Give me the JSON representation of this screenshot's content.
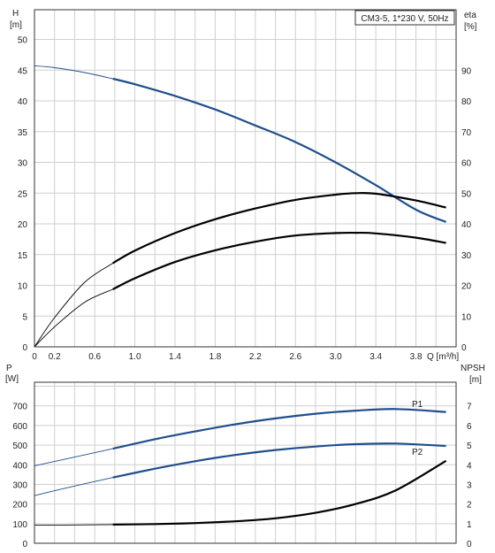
{
  "chart_data": [
    {
      "type": "line",
      "title": "CM3-5, 1*230 V, 50Hz",
      "xlabel": "Q [m³/h]",
      "ylabel_left": "H",
      "ylabel_left_unit": "[m]",
      "ylabel_right": "eta",
      "ylabel_right_unit": "[%]",
      "xlim": [
        0,
        4.2
      ],
      "ylim_left": [
        0,
        50
      ],
      "ylim_right": [
        0,
        100
      ],
      "x_ticks": [
        "0",
        "0.2",
        "0.6",
        "1.0",
        "1.4",
        "1.8",
        "2.2",
        "2.6",
        "3.0",
        "3.4",
        "3.8"
      ],
      "x_tick_values": [
        0,
        0.2,
        0.6,
        1.0,
        1.4,
        1.8,
        2.2,
        2.6,
        3.0,
        3.4,
        3.8
      ],
      "y_ticks_left": [
        "0",
        "5",
        "10",
        "15",
        "20",
        "25",
        "30",
        "35",
        "40",
        "45",
        "50"
      ],
      "y_ticks_right": [
        "0",
        "10",
        "20",
        "30",
        "40",
        "50",
        "60",
        "70",
        "80",
        "90"
      ],
      "grid": true,
      "series": [
        {
          "axis": "left",
          "color": "#1f4e8c",
          "x": [
            0,
            0.2,
            0.5,
            0.78,
            1.0,
            1.4,
            1.8,
            2.2,
            2.6,
            3.0,
            3.4,
            3.8,
            4.1
          ],
          "values": [
            45.7,
            45.4,
            44.6,
            43.6,
            42.7,
            40.8,
            38.6,
            36.0,
            33.3,
            30.0,
            26.3,
            22.3,
            20.3
          ]
        },
        {
          "axis": "right",
          "color": "#000000",
          "x": [
            0,
            0.2,
            0.5,
            0.78,
            1.0,
            1.4,
            1.8,
            2.2,
            2.6,
            3.0,
            3.2,
            3.4,
            3.8,
            4.1
          ],
          "values": [
            0,
            9.5,
            21,
            27.2,
            31.3,
            37.0,
            41.5,
            45.0,
            47.8,
            49.5,
            50.0,
            49.8,
            47.6,
            45.3
          ]
        },
        {
          "axis": "right",
          "color": "#000000",
          "x": [
            0,
            0.2,
            0.5,
            0.78,
            1.0,
            1.4,
            1.8,
            2.2,
            2.6,
            3.0,
            3.2,
            3.4,
            3.8,
            4.1
          ],
          "values": [
            0,
            6.5,
            14.5,
            18.7,
            22.3,
            27.6,
            31.4,
            34.2,
            36.2,
            37.0,
            37.1,
            36.9,
            35.5,
            33.8
          ]
        }
      ]
    },
    {
      "type": "line",
      "ylabel_left": "P",
      "ylabel_left_unit": "[W]",
      "ylabel_right": "NPSH",
      "ylabel_right_unit": "[m]",
      "xlim": [
        0,
        4.2
      ],
      "ylim_left": [
        0,
        800
      ],
      "ylim_right": [
        0,
        8
      ],
      "y_ticks_left": [
        "0",
        "100",
        "200",
        "300",
        "400",
        "500",
        "600",
        "700"
      ],
      "y_ticks_right": [
        "0",
        "1",
        "2",
        "3",
        "4",
        "5",
        "6",
        "7"
      ],
      "grid": true,
      "series": [
        {
          "name": "P1",
          "axis": "left",
          "color": "#1f4e8c",
          "x": [
            0,
            0.3,
            0.78,
            1.2,
            1.6,
            2.0,
            2.4,
            2.8,
            3.2,
            3.6,
            4.1
          ],
          "values": [
            395,
            428,
            482,
            530,
            570,
            606,
            636,
            660,
            676,
            684,
            669
          ]
        },
        {
          "name": "P2",
          "axis": "left",
          "color": "#1f4e8c",
          "x": [
            0,
            0.3,
            0.78,
            1.2,
            1.6,
            2.0,
            2.4,
            2.8,
            3.2,
            3.6,
            4.1
          ],
          "values": [
            243,
            280,
            335,
            380,
            418,
            450,
            475,
            493,
            505,
            508,
            496
          ]
        },
        {
          "name": "NPSH",
          "axis": "right",
          "color": "#000000",
          "x": [
            0,
            0.3,
            0.78,
            1.2,
            1.6,
            2.0,
            2.4,
            2.8,
            3.2,
            3.6,
            4.1
          ],
          "values": [
            0.93,
            0.93,
            0.95,
            0.98,
            1.03,
            1.12,
            1.27,
            1.55,
            2.0,
            2.7,
            4.2
          ]
        }
      ]
    }
  ]
}
